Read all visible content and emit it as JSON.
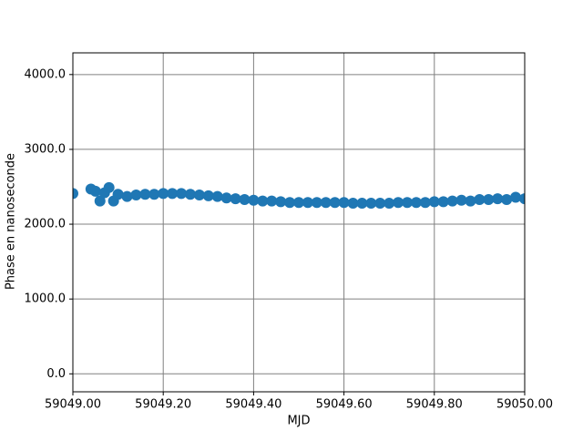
{
  "chart_data": {
    "type": "scatter",
    "xlabel": "MJD",
    "ylabel": "Phase en nanoseconde",
    "color": "#1f77b4",
    "grid": true,
    "x": [
      59049.0,
      59049.04,
      59049.05,
      59049.06,
      59049.07,
      59049.08,
      59049.09,
      59049.1,
      59049.12,
      59049.14,
      59049.16,
      59049.18,
      59049.2,
      59049.22,
      59049.24,
      59049.26,
      59049.28,
      59049.3,
      59049.32,
      59049.34,
      59049.36,
      59049.38,
      59049.4,
      59049.42,
      59049.44,
      59049.46,
      59049.48,
      59049.5,
      59049.52,
      59049.54,
      59049.56,
      59049.58,
      59049.6,
      59049.62,
      59049.64,
      59049.66,
      59049.68,
      59049.7,
      59049.72,
      59049.74,
      59049.76,
      59049.78,
      59049.8,
      59049.82,
      59049.84,
      59049.86,
      59049.88,
      59049.9,
      59049.92,
      59049.94,
      59049.96,
      59049.98,
      59050.0
    ],
    "values": [
      2410,
      2470,
      2440,
      2310,
      2420,
      2490,
      2310,
      2400,
      2370,
      2390,
      2400,
      2400,
      2410,
      2410,
      2410,
      2400,
      2390,
      2380,
      2370,
      2350,
      2340,
      2330,
      2320,
      2310,
      2310,
      2300,
      2290,
      2290,
      2290,
      2290,
      2290,
      2290,
      2290,
      2280,
      2280,
      2280,
      2280,
      2280,
      2290,
      2290,
      2290,
      2290,
      2300,
      2300,
      2310,
      2320,
      2310,
      2330,
      2330,
      2340,
      2330,
      2360,
      2340
    ],
    "xlim": [
      59049.0,
      59050.0
    ],
    "xticks": [
      {
        "value": 59049.0,
        "label": "59049.00"
      },
      {
        "value": 59049.2,
        "label": "59049.20"
      },
      {
        "value": 59049.4,
        "label": "59049.40"
      },
      {
        "value": 59049.6,
        "label": "59049.60"
      },
      {
        "value": 59049.8,
        "label": "59049.80"
      },
      {
        "value": 59050.0,
        "label": "59050.00"
      }
    ],
    "ylim": [
      -240,
      4290
    ],
    "yticks": [
      {
        "value": 0,
        "label": "0.0"
      },
      {
        "value": 1000,
        "label": "1000.0"
      },
      {
        "value": 2000,
        "label": "2000.0"
      },
      {
        "value": 3000,
        "label": "3000.0"
      },
      {
        "value": 4000,
        "label": "4000.0"
      }
    ]
  }
}
